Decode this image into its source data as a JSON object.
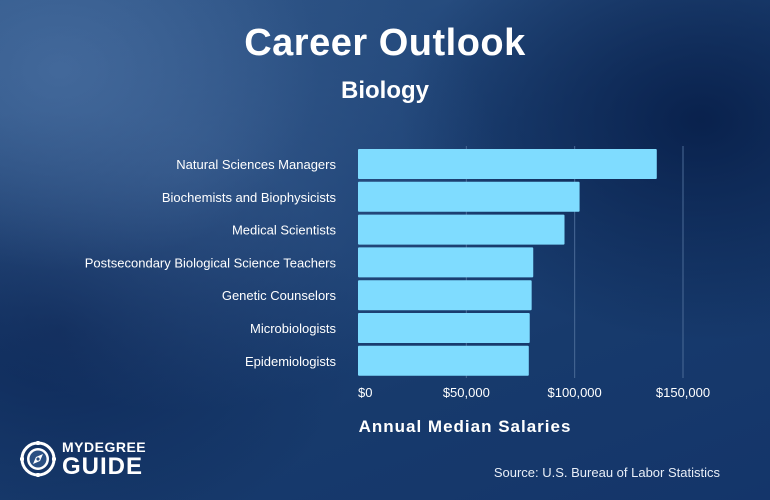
{
  "header": {
    "title": "Career Outlook",
    "subtitle": "Biology"
  },
  "branding": {
    "logo_line1": "MYDEGREE",
    "logo_line2": "GUIDE",
    "logo_icon": "compass-icon"
  },
  "footer": {
    "source": "Source: U.S. Bureau of Labor Statistics"
  },
  "colors": {
    "bar": "#7fdcff",
    "text": "#ffffff",
    "gridline": "#4a6a96"
  },
  "chart_data": {
    "type": "bar",
    "orientation": "horizontal",
    "categories": [
      "Natural Sciences Managers",
      "Biochemists and Biophysicists",
      "Medical Scientists",
      "Postsecondary Biological Science Teachers",
      "Genetic Counselors",
      "Microbiologists",
      "Epidemiologists"
    ],
    "values": [
      137900,
      102270,
      95310,
      80880,
      80150,
      79260,
      78830
    ],
    "title": "Career Outlook",
    "subtitle": "Biology",
    "xlabel": "Annual Median Salaries",
    "ylabel": "",
    "xlim": [
      0,
      150000
    ],
    "xticks": [
      0,
      50000,
      100000,
      150000
    ],
    "xtick_labels": [
      "$0",
      "$50,000",
      "$100,000",
      "$150,000"
    ],
    "grid": "vertical",
    "legend": "none"
  }
}
